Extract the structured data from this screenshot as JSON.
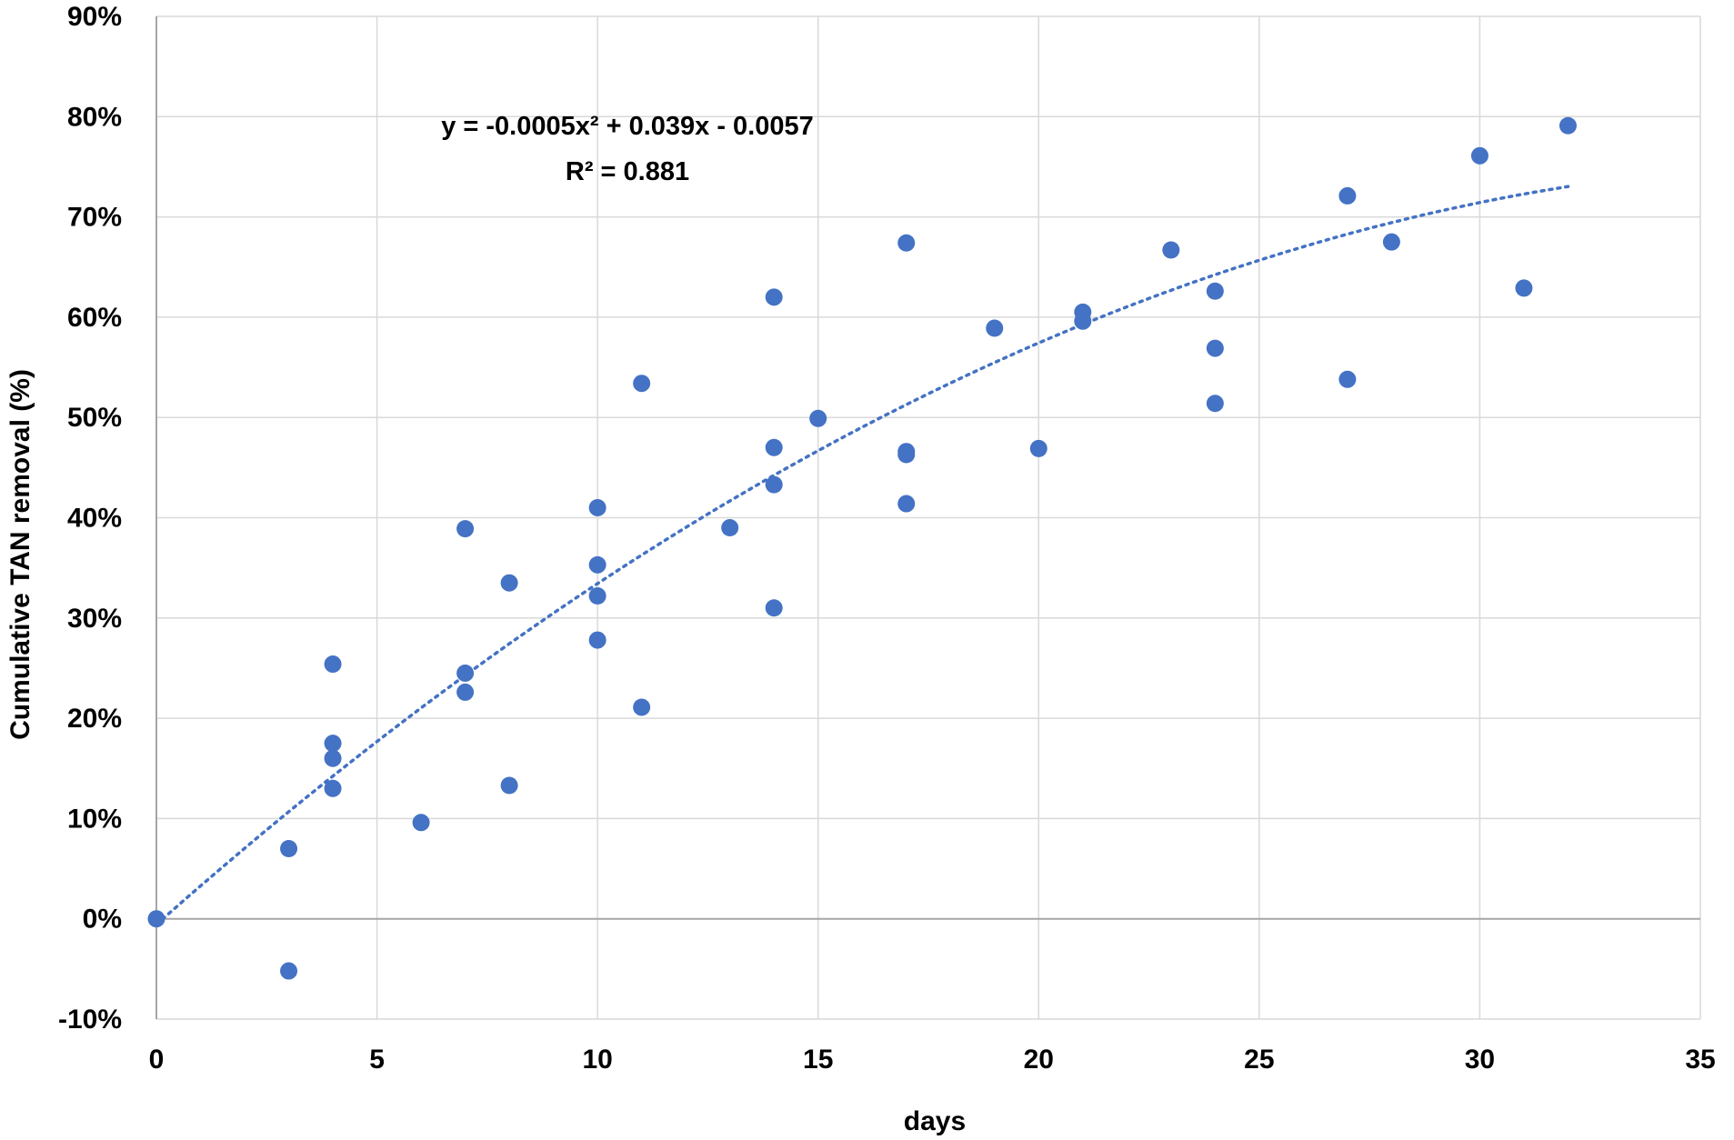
{
  "chart_data": {
    "type": "scatter",
    "title": "",
    "xlabel": "days",
    "ylabel": "Cumulative TAN removal (%)",
    "xlim": [
      0,
      35
    ],
    "ylim": [
      -10,
      90
    ],
    "x_ticks": [
      0,
      5,
      10,
      15,
      20,
      25,
      30,
      35
    ],
    "y_ticks": [
      -10,
      0,
      10,
      20,
      30,
      40,
      50,
      60,
      70,
      80,
      90
    ],
    "y_tick_labels": [
      "-10%",
      "0%",
      "10%",
      "20%",
      "30%",
      "40%",
      "50%",
      "60%",
      "70%",
      "80%",
      "90%"
    ],
    "x_tick_labels": [
      "0",
      "5",
      "10",
      "15",
      "20",
      "25",
      "30",
      "35"
    ],
    "grid": true,
    "legend": "none",
    "point_color": "#4472C4",
    "trendline_color": "#4472C4",
    "series": [
      {
        "x": [
          0,
          3,
          3,
          4,
          4,
          4,
          4,
          6,
          7,
          7,
          7,
          8,
          8,
          10,
          10,
          10,
          10,
          11,
          11,
          13,
          14,
          14,
          14,
          14,
          15,
          17,
          17,
          17,
          17,
          19,
          20,
          21,
          21,
          23,
          24,
          24,
          24,
          27,
          27,
          28,
          30,
          31,
          32
        ],
        "y": [
          0,
          -5.2,
          7,
          25.4,
          17.5,
          16,
          13,
          9.6,
          38.9,
          24.5,
          22.6,
          33.5,
          13.3,
          41,
          35.3,
          32.2,
          27.8,
          53.4,
          21.1,
          39,
          62,
          47,
          43.3,
          31,
          49.9,
          67.4,
          46.6,
          46.3,
          41.4,
          58.9,
          46.9,
          60.5,
          59.6,
          66.7,
          62.6,
          56.9,
          51.4,
          72.1,
          53.8,
          67.5,
          76.1,
          62.9,
          79.1
        ]
      }
    ],
    "trendline": {
      "type": "polynomial",
      "coefficients": [
        -0.0005,
        0.039,
        -0.0057
      ],
      "x_range": [
        0,
        32
      ],
      "style": "dotted"
    },
    "annotations": {
      "equation": "y = -0.0005x² + 0.039x - 0.0057",
      "r_squared": "R² = 0.881"
    }
  }
}
